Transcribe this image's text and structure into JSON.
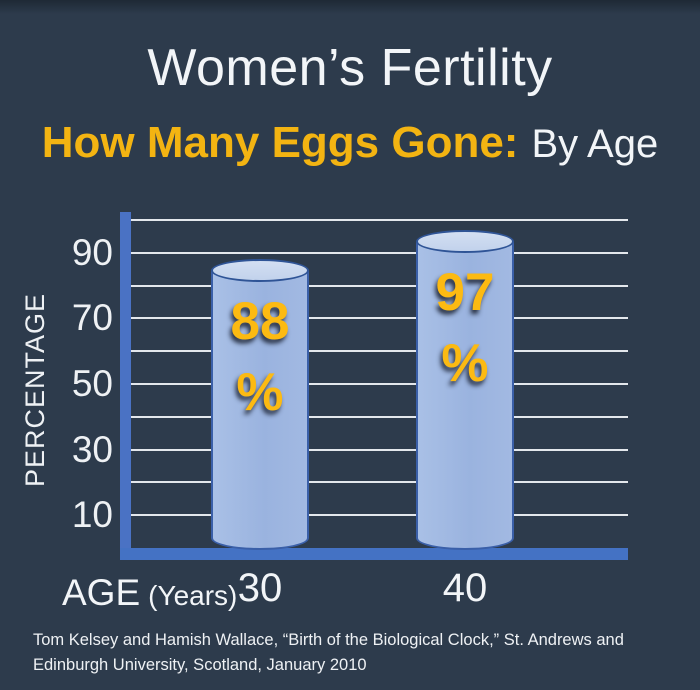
{
  "title": "Women’s Fertility",
  "subtitle": {
    "highlight": "How Many Eggs Gone:",
    "rest": "By Age"
  },
  "chart_data": {
    "type": "bar",
    "style": "3d-cylinder",
    "categories": [
      "30",
      "40"
    ],
    "values": [
      88,
      97
    ],
    "value_unit": "%",
    "title": "Women’s Fertility — How Many Eggs Gone: By Age",
    "xlabel": "AGE",
    "xlabel_unit": "(Years)",
    "ylabel": "PERCENTAGE",
    "ylim": [
      0,
      100
    ],
    "grid": true,
    "grid_step": 10,
    "ytick_values": [
      90,
      70,
      50,
      30,
      10
    ],
    "legend": false
  },
  "source": "Tom Kelsey and Hamish Wallace, “Birth of the Biological Clock,” St. Andrews and Edinburgh University, Scotland, January 2010",
  "colors": {
    "background": "#2d3b4c",
    "top_strip": "#1e2935",
    "axis_blue": "#4472c4",
    "gridline": "#e3e7ec",
    "bar_fill": "#9cb4e0",
    "bar_top_fill": "#c7d5ee",
    "bar_outline": "#3a5fa8",
    "accent_gold": "#f3b412",
    "bar_value_gold": "#fcba12",
    "text_white": "#f2f5f8"
  }
}
